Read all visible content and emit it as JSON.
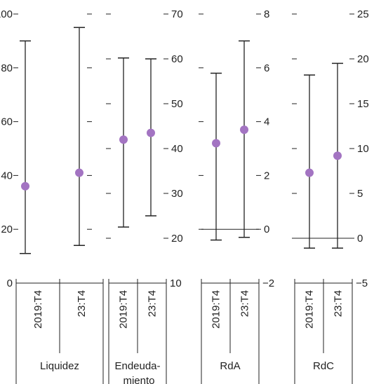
{
  "chart_data": [
    {
      "type": "errorbar",
      "group_label": "Liquidez",
      "categories": [
        "2019:T4",
        "23:T4"
      ],
      "ylim": [
        0,
        100
      ],
      "left_ticks": [
        "0",
        "20",
        "40",
        "60",
        "80",
        "100"
      ],
      "left_tick_values": [
        0,
        20,
        40,
        60,
        80,
        100
      ],
      "points": [
        {
          "x": "2019:T4",
          "value": 36,
          "low": 11,
          "high": 90
        },
        {
          "x": "23:T4",
          "value": 41,
          "low": 14,
          "high": 95
        }
      ]
    },
    {
      "type": "errorbar",
      "group_label": "Endeuda-miento",
      "categories": [
        "2019:T4",
        "23:T4"
      ],
      "ylim": [
        10,
        70
      ],
      "right_ticks": [
        "10",
        "20",
        "30",
        "40",
        "50",
        "60",
        "70"
      ],
      "right_tick_values": [
        10,
        20,
        30,
        40,
        50,
        60,
        70
      ],
      "points": [
        {
          "x": "2019:T4",
          "value": 42,
          "low": 22.5,
          "high": 60.2
        },
        {
          "x": "23:T4",
          "value": 43.5,
          "low": 25,
          "high": 60
        }
      ]
    },
    {
      "type": "errorbar",
      "group_label": "RdA",
      "categories": [
        "2019:T4",
        "23:T4"
      ],
      "ylim": [
        -2,
        8
      ],
      "right_ticks": [
        "−2",
        "0",
        "2",
        "4",
        "6",
        "8"
      ],
      "right_tick_values": [
        -2,
        0,
        2,
        4,
        6,
        8
      ],
      "zero_line": true,
      "points": [
        {
          "x": "2019:T4",
          "value": 3.2,
          "low": -0.4,
          "high": 5.8
        },
        {
          "x": "23:T4",
          "value": 3.7,
          "low": -0.3,
          "high": 7.0
        }
      ]
    },
    {
      "type": "errorbar",
      "group_label": "RdC",
      "categories": [
        "2019:T4",
        "23:T4"
      ],
      "ylim": [
        -5,
        25
      ],
      "right_ticks": [
        "−5",
        "0",
        "5",
        "10",
        "15",
        "20",
        "25"
      ],
      "right_tick_values": [
        -5,
        0,
        5,
        10,
        15,
        20,
        25
      ],
      "zero_line": true,
      "points": [
        {
          "x": "2019:T4",
          "value": 7.3,
          "low": -1.1,
          "high": 18.2
        },
        {
          "x": "23:T4",
          "value": 9.2,
          "low": -1.1,
          "high": 19.5
        }
      ]
    }
  ],
  "colors": {
    "point": "#a374c2",
    "line": "#222222"
  }
}
